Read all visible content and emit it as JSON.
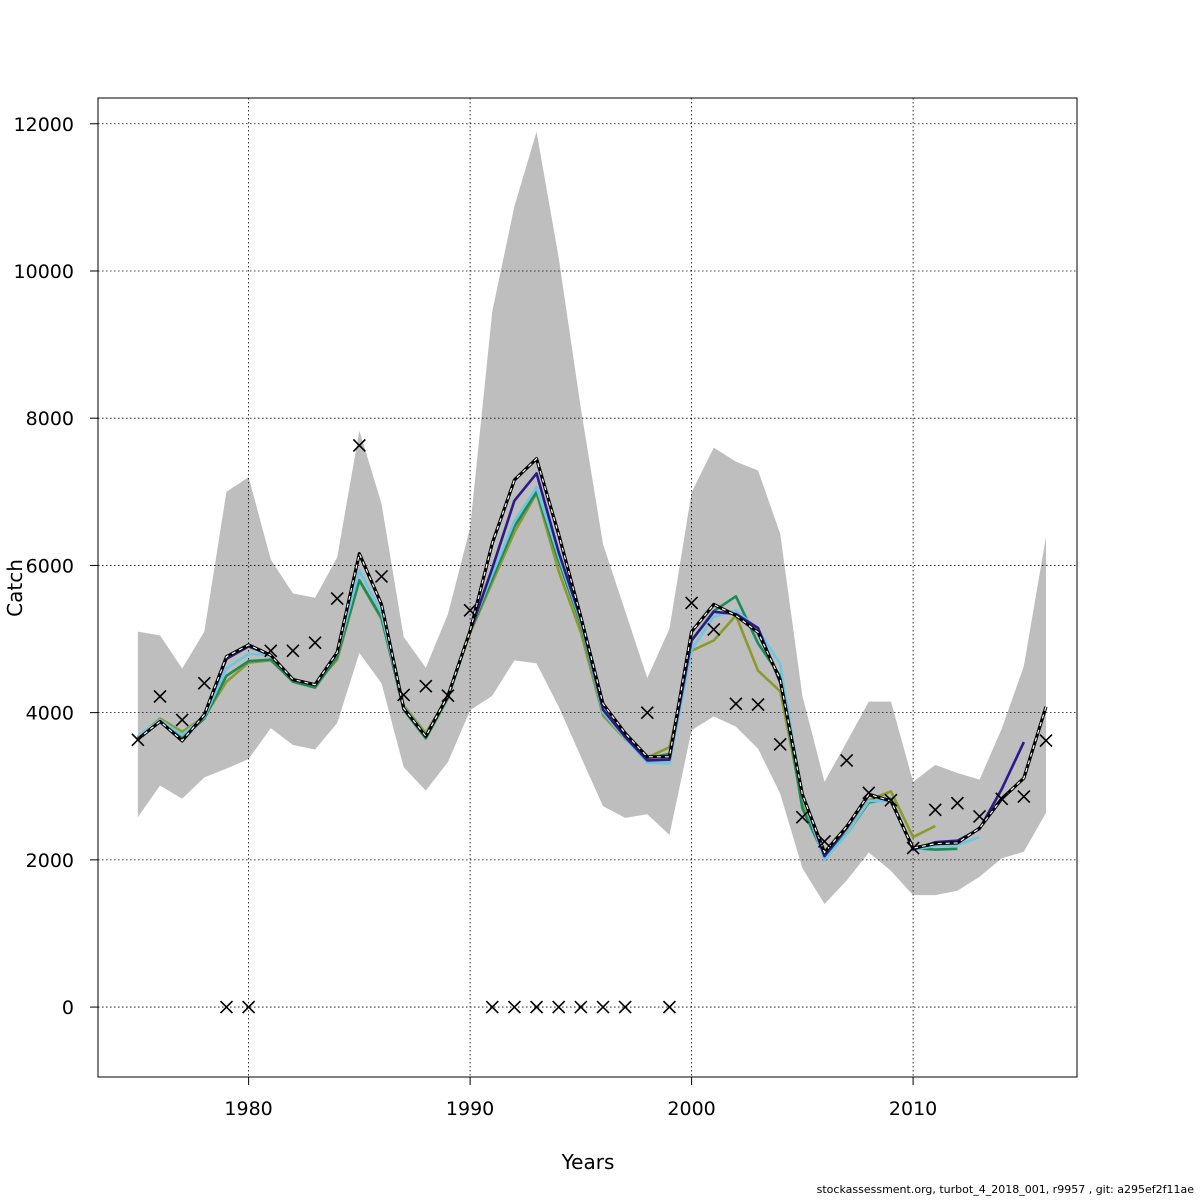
{
  "footer_text": "stockassessment.org, turbot_4_2018_001, r9957 , git: a295ef2f11ae",
  "chart_data": {
    "type": "line",
    "title": "",
    "xlabel": "Years",
    "ylabel": "Catch",
    "xlim": [
      1973.2,
      2017.4
    ],
    "ylim": [
      -950,
      12350
    ],
    "xticks": [
      1980,
      1990,
      2000,
      2010
    ],
    "yticks": [
      0,
      2000,
      4000,
      6000,
      8000,
      10000,
      12000
    ],
    "grid": true,
    "colors": {
      "band": "#bebebe",
      "base": "#000000",
      "retro1": "#2e1a87",
      "retro2": "#6ec6e0",
      "retro3": "#1b8a5a",
      "retro4": "#8b9a2b"
    },
    "band": {
      "name": "confidence interval",
      "x": [
        1975,
        1976,
        1977,
        1978,
        1979,
        1980,
        1981,
        1982,
        1983,
        1984,
        1985,
        1986,
        1987,
        1988,
        1989,
        1990,
        1991,
        1992,
        1993,
        1994,
        1995,
        1996,
        1997,
        1998,
        1999,
        2000,
        2001,
        2002,
        2003,
        2004,
        2005,
        2006,
        2007,
        2008,
        2009,
        2010,
        2011,
        2012,
        2013,
        2014,
        2015,
        2016
      ],
      "upper": [
        5100,
        5050,
        4600,
        5100,
        7000,
        7200,
        6080,
        5620,
        5560,
        6110,
        7830,
        6840,
        5030,
        4610,
        5340,
        6510,
        9450,
        10880,
        11890,
        10180,
        8130,
        6290,
        5380,
        4470,
        5140,
        6990,
        7600,
        7410,
        7290,
        6430,
        4230,
        3060,
        3600,
        4150,
        4150,
        3060,
        3290,
        3180,
        3090,
        3780,
        4630,
        6390
      ],
      "lower": [
        2580,
        3010,
        2830,
        3120,
        3240,
        3370,
        3790,
        3560,
        3500,
        3860,
        4810,
        4400,
        3260,
        2940,
        3330,
        4030,
        4230,
        4710,
        4670,
        4080,
        3400,
        2730,
        2570,
        2620,
        2340,
        3760,
        3950,
        3810,
        3510,
        2900,
        1890,
        1400,
        1720,
        2100,
        1850,
        1520,
        1520,
        1580,
        1770,
        2020,
        2110,
        2640
      ]
    },
    "series": [
      {
        "name": "retro4",
        "x": [
          1975,
          1976,
          1977,
          1978,
          1979,
          1980,
          1981,
          1982,
          1983,
          1984,
          1985,
          1986,
          1987,
          1988,
          1989,
          1990,
          1991,
          1992,
          1993,
          1994,
          1995,
          1996,
          1997,
          1998,
          1999,
          2000,
          2001,
          2002,
          2003,
          2004,
          2005,
          2006,
          2007,
          2008,
          2009,
          2010,
          2011
        ],
        "values": [
          3660,
          3920,
          3740,
          3940,
          4420,
          4680,
          4710,
          4430,
          4380,
          4720,
          5790,
          5270,
          4100,
          3720,
          4230,
          5080,
          5770,
          6450,
          6980,
          5920,
          5090,
          3960,
          3640,
          3390,
          3530,
          4840,
          4980,
          5320,
          4570,
          4290,
          2770,
          2090,
          2360,
          2810,
          2930,
          2310,
          2460
        ]
      },
      {
        "name": "retro3",
        "x": [
          1975,
          1976,
          1977,
          1978,
          1979,
          1980,
          1981,
          1982,
          1983,
          1984,
          1985,
          1986,
          1987,
          1988,
          1989,
          1990,
          1991,
          1992,
          1993,
          1994,
          1995,
          1996,
          1997,
          1998,
          1999,
          2000,
          2001,
          2002,
          2003,
          2004,
          2005,
          2006,
          2007,
          2008,
          2009,
          2010,
          2011,
          2012
        ],
        "values": [
          3640,
          3880,
          3650,
          3920,
          4500,
          4700,
          4720,
          4420,
          4340,
          4760,
          5800,
          5290,
          4040,
          3650,
          4200,
          5100,
          5820,
          6530,
          7000,
          6060,
          5200,
          3990,
          3660,
          3380,
          3440,
          4980,
          5380,
          5580,
          4940,
          4500,
          2700,
          2050,
          2350,
          2780,
          2830,
          2160,
          2140,
          2150
        ]
      },
      {
        "name": "retro2",
        "x": [
          1975,
          1976,
          1977,
          1978,
          1979,
          1980,
          1981,
          1982,
          1983,
          1984,
          1985,
          1986,
          1987,
          1988,
          1989,
          1990,
          1991,
          1992,
          1993,
          1994,
          1995,
          1996,
          1997,
          1998,
          1999,
          2000,
          2001,
          2002,
          2003,
          2004,
          2005,
          2006,
          2007,
          2008,
          2009,
          2010,
          2011,
          2012,
          2013
        ],
        "values": [
          3680,
          3900,
          3700,
          3940,
          4600,
          4800,
          4780,
          4460,
          4380,
          4800,
          5930,
          5350,
          4080,
          3690,
          4220,
          5120,
          5880,
          6600,
          7060,
          6120,
          5240,
          4000,
          3650,
          3320,
          3310,
          4860,
          5300,
          5390,
          5130,
          4660,
          2870,
          2000,
          2350,
          2800,
          2800,
          2140,
          2190,
          2200,
          2310
        ]
      },
      {
        "name": "retro1",
        "x": [
          1975,
          1976,
          1977,
          1978,
          1979,
          1980,
          1981,
          1982,
          1983,
          1984,
          1985,
          1986,
          1987,
          1988,
          1989,
          1990,
          1991,
          1992,
          1993,
          1994,
          1995,
          1996,
          1997,
          1998,
          1999,
          2000,
          2001,
          2002,
          2003,
          2004,
          2005,
          2006,
          2007,
          2008,
          2009,
          2010,
          2011,
          2012,
          2013,
          2014,
          2015
        ],
        "values": [
          3640,
          3880,
          3610,
          3960,
          4730,
          4900,
          4780,
          4450,
          4380,
          4810,
          6150,
          5460,
          4050,
          3680,
          4230,
          5100,
          5960,
          6880,
          7250,
          6180,
          5270,
          4040,
          3670,
          3350,
          3360,
          4980,
          5370,
          5340,
          5150,
          4410,
          2890,
          2050,
          2430,
          2880,
          2800,
          2140,
          2240,
          2260,
          2420,
          2960,
          3600
        ]
      },
      {
        "name": "base",
        "dashed": true,
        "x": [
          1975,
          1976,
          1977,
          1978,
          1979,
          1980,
          1981,
          1982,
          1983,
          1984,
          1985,
          1986,
          1987,
          1988,
          1989,
          1990,
          1991,
          1992,
          1993,
          1994,
          1995,
          1996,
          1997,
          1998,
          1999,
          2000,
          2001,
          2002,
          2003,
          2004,
          2005,
          2006,
          2007,
          2008,
          2009,
          2010,
          2011,
          2012,
          2013,
          2014,
          2015,
          2016
        ],
        "values": [
          3640,
          3880,
          3620,
          3970,
          4760,
          4920,
          4780,
          4450,
          4380,
          4820,
          6160,
          5470,
          4060,
          3680,
          4230,
          5110,
          6300,
          7160,
          7450,
          6420,
          5300,
          4120,
          3720,
          3400,
          3400,
          5100,
          5470,
          5320,
          5090,
          4450,
          2890,
          2100,
          2450,
          2890,
          2800,
          2160,
          2220,
          2230,
          2430,
          2830,
          3110,
          4080
        ]
      }
    ],
    "observations": {
      "name": "observed catch",
      "x": [
        1975,
        1976,
        1977,
        1978,
        1979,
        1980,
        1981,
        1982,
        1983,
        1984,
        1985,
        1986,
        1987,
        1988,
        1989,
        1990,
        1991,
        1992,
        1993,
        1994,
        1995,
        1996,
        1997,
        1998,
        1999,
        2000,
        2001,
        2002,
        2003,
        2004,
        2005,
        2006,
        2007,
        2008,
        2009,
        2010,
        2011,
        2012,
        2013,
        2014,
        2015,
        2016
      ],
      "values": [
        3630,
        4220,
        3900,
        4400,
        0,
        0,
        4840,
        4840,
        4950,
        5550,
        7630,
        5850,
        4240,
        4360,
        4230,
        5390,
        0,
        0,
        0,
        0,
        0,
        0,
        0,
        4000,
        0,
        5490,
        5130,
        4120,
        4110,
        3570,
        2580,
        2250,
        3350,
        2910,
        2810,
        2160,
        2680,
        2770,
        2590,
        2830,
        2860,
        3620
      ]
    }
  }
}
